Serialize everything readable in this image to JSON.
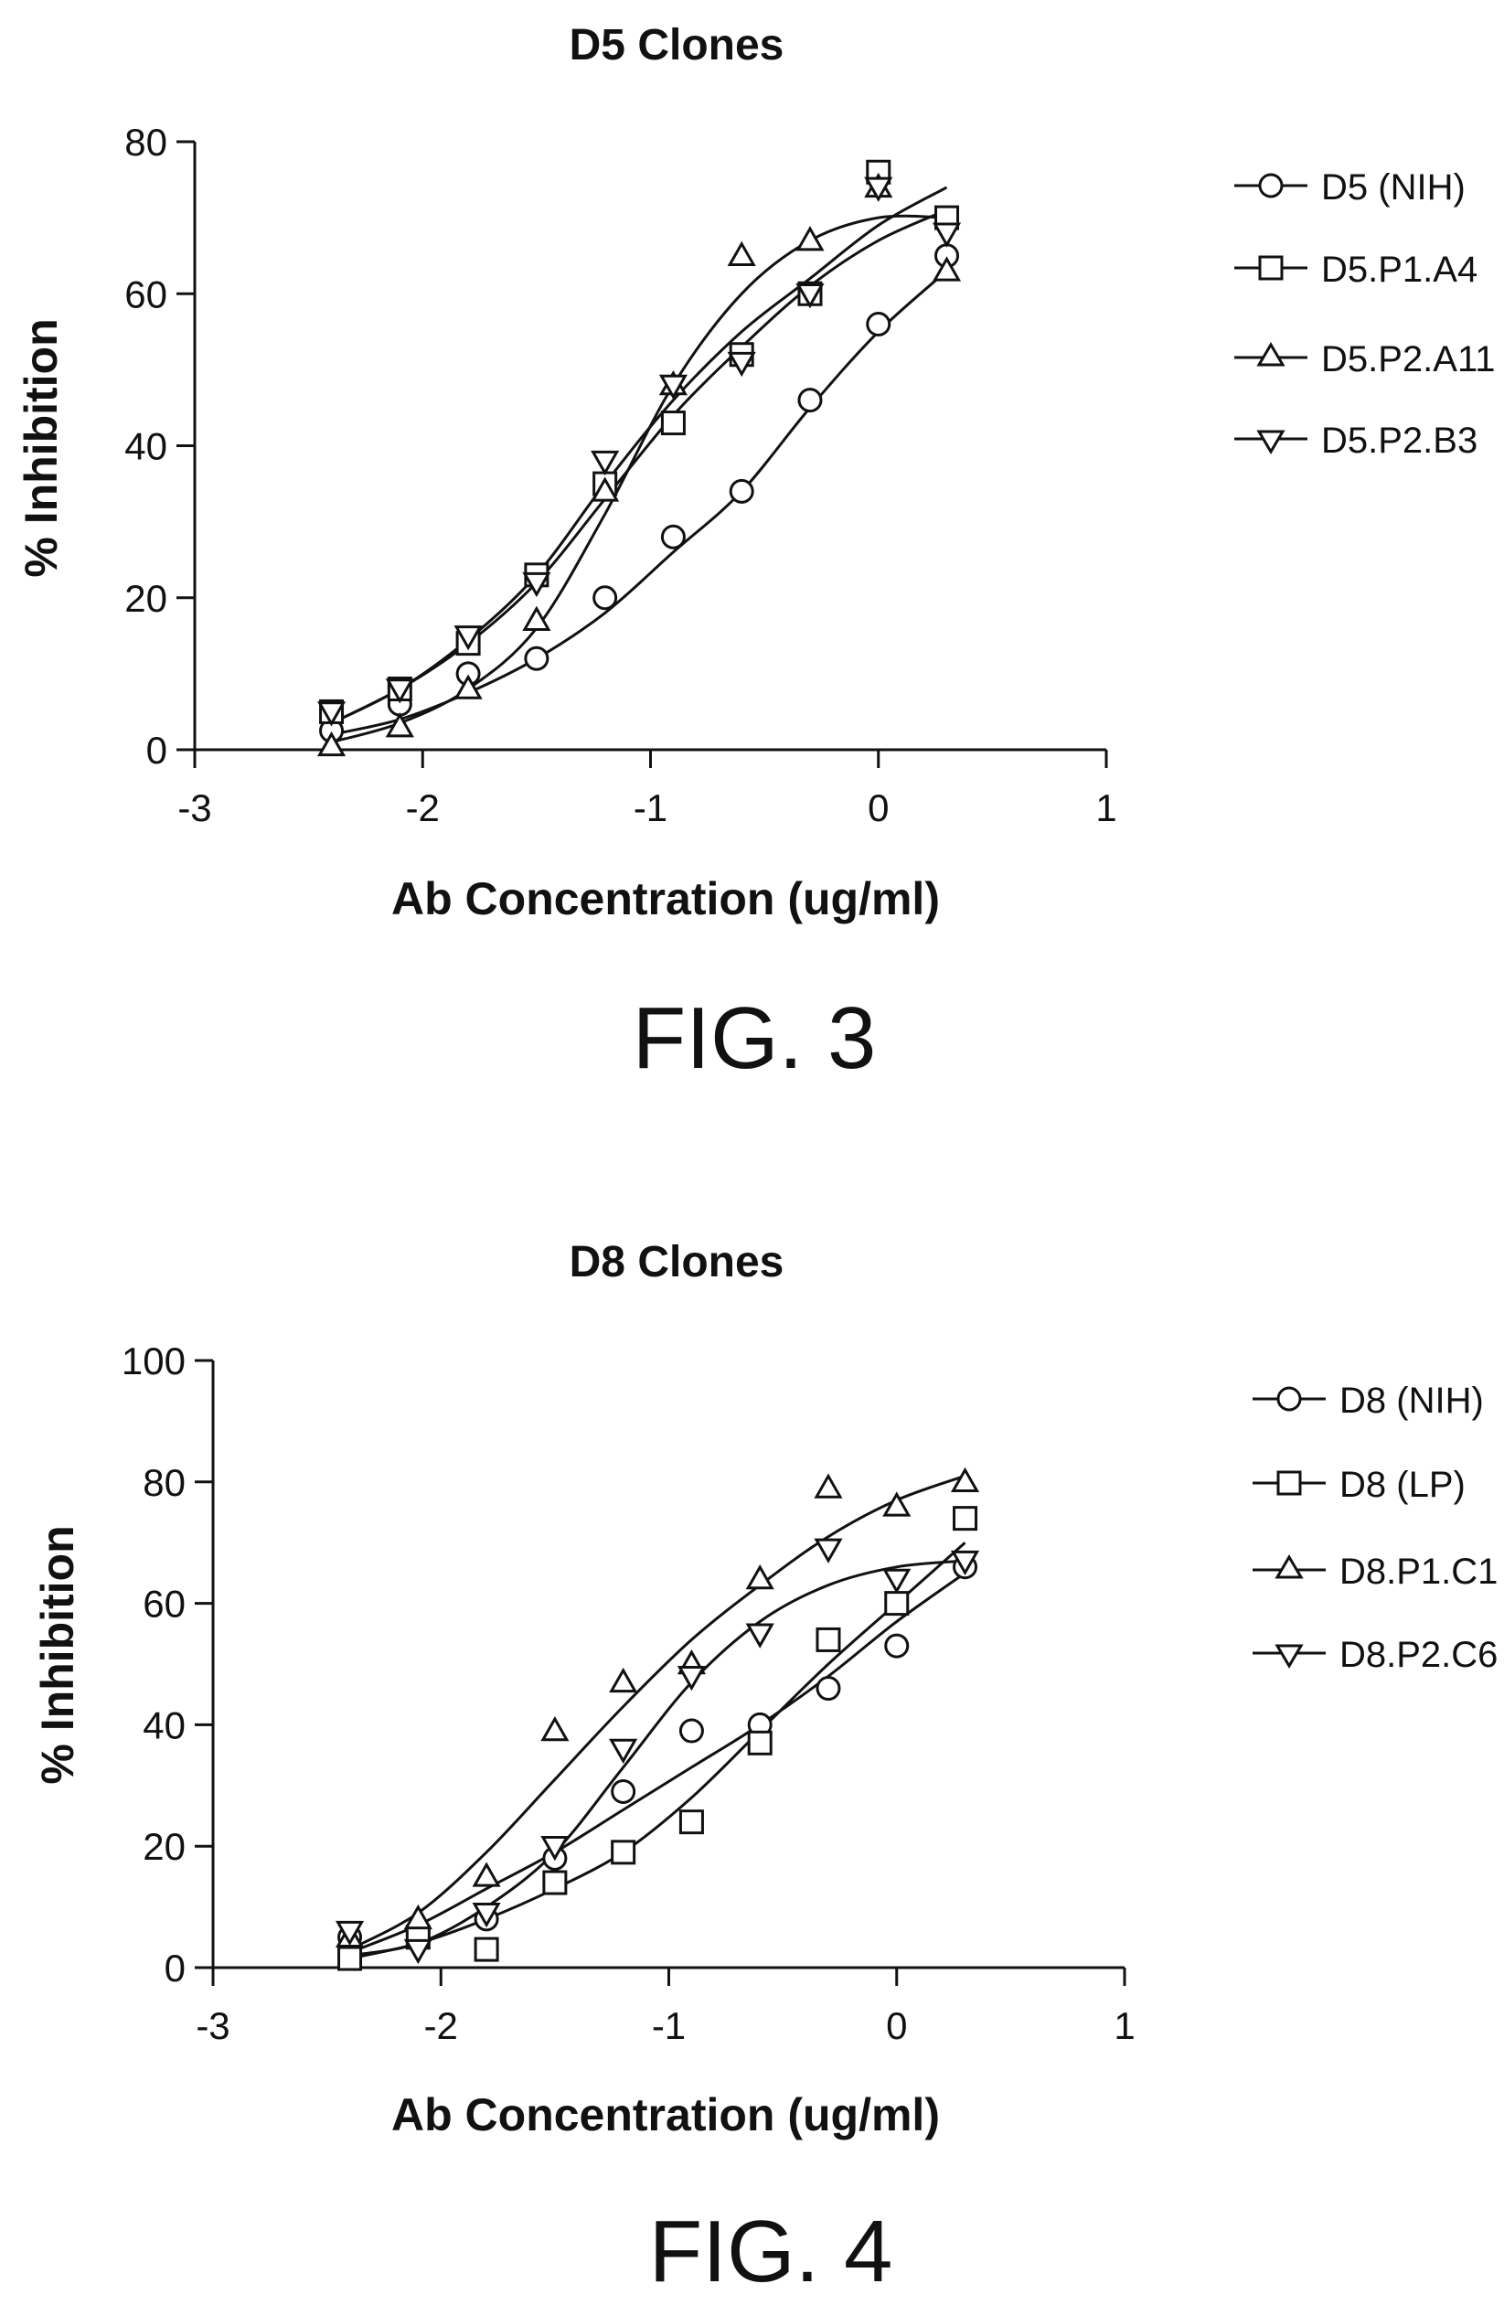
{
  "chart_data": [
    {
      "type": "scatter",
      "title": "D5 Clones",
      "xlabel": "Ab Concentration (ug/ml)",
      "ylabel": "% Inhibition",
      "xlim": [
        -3,
        1
      ],
      "ylim": [
        0,
        80
      ],
      "xticks": [
        "-3",
        "-2",
        "-1",
        "0",
        "1"
      ],
      "yticks": [
        "0",
        "20",
        "40",
        "60",
        "80"
      ],
      "legend_position": "right",
      "grid": false,
      "caption": "FIG. 3",
      "series": [
        {
          "name": "D5 (NIH)",
          "marker": "circle",
          "x": [
            -2.4,
            -2.1,
            -1.8,
            -1.5,
            -1.2,
            -0.9,
            -0.6,
            -0.3,
            0.0,
            0.3
          ],
          "y": [
            2.5,
            6,
            10,
            12,
            20,
            28,
            34,
            46,
            56,
            65
          ],
          "fit": [
            -2.4,
            2,
            -2.1,
            4,
            -1.8,
            7.5,
            -1.5,
            12,
            -1.2,
            18,
            -0.9,
            26,
            -0.6,
            34,
            -0.3,
            45,
            0.0,
            55,
            0.3,
            63
          ]
        },
        {
          "name": "D5.P1.A4",
          "marker": "square",
          "x": [
            -2.4,
            -2.1,
            -1.8,
            -1.5,
            -1.2,
            -0.9,
            -0.6,
            -0.3,
            0.0,
            0.3
          ],
          "y": [
            5,
            8,
            14,
            23,
            35,
            43,
            52,
            60,
            76,
            70
          ],
          "fit": [
            -2.4,
            3.5,
            -2.1,
            8,
            -1.8,
            14,
            -1.5,
            22,
            -1.2,
            33,
            -0.9,
            44,
            -0.6,
            53,
            -0.3,
            61,
            0.0,
            67,
            0.3,
            71
          ]
        },
        {
          "name": "D5.P2.A11",
          "marker": "triangle-up",
          "x": [
            -2.4,
            -2.1,
            -1.8,
            -1.5,
            -1.2,
            -0.9,
            -0.6,
            -0.3,
            0.0,
            0.3
          ],
          "y": [
            0.5,
            3,
            8,
            17,
            34,
            48,
            65,
            67,
            74,
            63
          ],
          "fit": [
            -2.4,
            1,
            -2.1,
            3.5,
            -1.8,
            8,
            -1.5,
            16,
            -1.2,
            31,
            -0.9,
            48,
            -0.6,
            60,
            -0.3,
            67,
            0.0,
            70,
            0.3,
            70
          ]
        },
        {
          "name": "D5.P2.B3",
          "marker": "triangle-down",
          "x": [
            -2.4,
            -2.1,
            -1.8,
            -1.5,
            -1.2,
            -0.9,
            -0.6,
            -0.3,
            0.0,
            0.3
          ],
          "y": [
            5,
            8,
            15,
            22,
            38,
            48,
            51,
            60,
            74,
            68
          ],
          "fit": [
            -2.4,
            3.5,
            -2.1,
            8,
            -1.8,
            14.5,
            -1.5,
            23,
            -1.2,
            35,
            -0.9,
            46,
            -0.6,
            55,
            -0.3,
            62,
            0.0,
            69,
            0.3,
            74
          ]
        }
      ]
    },
    {
      "type": "scatter",
      "title": "D8 Clones",
      "xlabel": "Ab Concentration (ug/ml)",
      "ylabel": "% Inhibition",
      "xlim": [
        -3,
        1
      ],
      "ylim": [
        0,
        100
      ],
      "xticks": [
        "-3",
        "-2",
        "-1",
        "0",
        "1"
      ],
      "yticks": [
        "0",
        "20",
        "40",
        "60",
        "80",
        "100"
      ],
      "legend_position": "right",
      "grid": false,
      "caption": "FIG. 4",
      "series": [
        {
          "name": "D8 (NIH)",
          "marker": "circle",
          "x": [
            -2.4,
            -2.1,
            -1.8,
            -1.5,
            -1.2,
            -0.9,
            -0.6,
            -0.3,
            0.0,
            0.3
          ],
          "y": [
            5,
            6,
            8,
            18,
            29,
            39,
            40,
            46,
            53,
            66
          ],
          "fit": [
            -2.4,
            2.5,
            -2.1,
            7,
            -1.8,
            13,
            -1.5,
            19,
            -1.2,
            26,
            -0.9,
            33,
            -0.6,
            40,
            -0.3,
            48,
            0.0,
            57,
            0.3,
            65
          ]
        },
        {
          "name": "D8 (LP)",
          "marker": "square",
          "x": [
            -2.4,
            -2.1,
            -1.8,
            -1.5,
            -1.2,
            -0.9,
            -0.6,
            -0.3,
            0.0,
            0.3
          ],
          "y": [
            1.5,
            5,
            3,
            14,
            19,
            24,
            37,
            54,
            60,
            74
          ],
          "fit": [
            -2.4,
            1.5,
            -2.1,
            4,
            -1.8,
            8,
            -1.5,
            13,
            -1.2,
            19,
            -0.9,
            28,
            -0.6,
            39,
            -0.3,
            50,
            0.0,
            60,
            0.3,
            70
          ]
        },
        {
          "name": "D8.P1.C1",
          "marker": "triangle-up",
          "x": [
            -2.4,
            -2.1,
            -1.8,
            -1.5,
            -1.2,
            -0.9,
            -0.6,
            -0.3,
            0.0,
            0.3
          ],
          "y": [
            5,
            8,
            15,
            39,
            47,
            50,
            64,
            79,
            76,
            80
          ],
          "fit": [
            -2.4,
            3,
            -2.1,
            9,
            -1.8,
            19,
            -1.5,
            31,
            -1.2,
            43,
            -0.9,
            54,
            -0.6,
            63,
            -0.3,
            71,
            0.0,
            77,
            0.3,
            81
          ]
        },
        {
          "name": "D8.P2.C6",
          "marker": "triangle-down",
          "x": [
            -2.4,
            -2.1,
            -1.8,
            -1.5,
            -1.2,
            -0.9,
            -0.6,
            -0.3,
            0.0,
            0.3
          ],
          "y": [
            6,
            3,
            9,
            20,
            36,
            48,
            55,
            69,
            64,
            67
          ],
          "fit": [
            -2.4,
            2,
            -2.1,
            4,
            -1.8,
            10,
            -1.5,
            19,
            -1.2,
            33,
            -0.9,
            47,
            -0.6,
            57,
            -0.3,
            63,
            0.0,
            66,
            0.3,
            67
          ]
        }
      ]
    }
  ]
}
